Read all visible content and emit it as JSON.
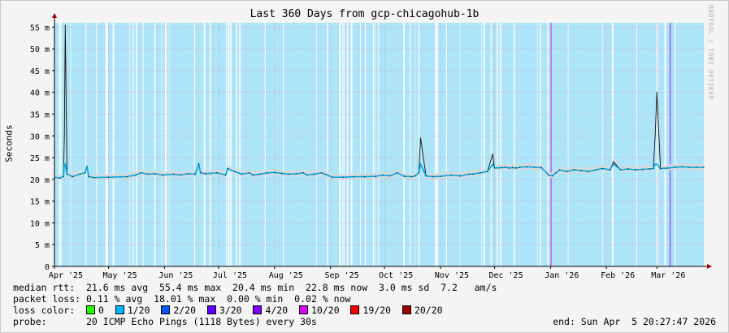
{
  "chart_data": {
    "type": "line",
    "title": "Last 360 Days from gcp-chicagohub-1b",
    "ylabel": "Seconds",
    "vendor": "RRDTOOL / TOBI OETIKER",
    "ylim": [
      0,
      0.056
    ],
    "y_ticks": [
      0,
      0.005,
      0.01,
      0.015,
      0.02,
      0.025,
      0.03,
      0.035,
      0.04,
      0.045,
      0.05,
      0.055
    ],
    "y_tick_labels": [
      "0",
      "5 m",
      "10 m",
      "15 m",
      "20 m",
      "25 m",
      "30 m",
      "35 m",
      "40 m",
      "45 m",
      "50 m",
      "55 m"
    ],
    "x_range_days": [
      0,
      360
    ],
    "x_ticks": [
      {
        "label": "Apr '25",
        "day": 0
      },
      {
        "label": "May '25",
        "day": 30
      },
      {
        "label": "Jun '25",
        "day": 61
      },
      {
        "label": "Jul '25",
        "day": 91
      },
      {
        "label": "Aug '25",
        "day": 122
      },
      {
        "label": "Sep '25",
        "day": 153
      },
      {
        "label": "Oct '25",
        "day": 183
      },
      {
        "label": "Nov '25",
        "day": 214
      },
      {
        "label": "Dec '25",
        "day": 244
      },
      {
        "label": "Jan '26",
        "day": 275
      },
      {
        "label": "Feb '26",
        "day": 306
      },
      {
        "label": "Mar '26",
        "day": 334
      }
    ],
    "series": [
      {
        "name": "median rtt",
        "x": [
          0,
          3,
          5,
          5.5,
          6,
          7,
          10,
          14,
          17,
          18,
          19,
          22,
          30,
          40,
          45,
          48,
          52,
          56,
          60,
          66,
          70,
          74,
          78,
          80,
          81,
          84,
          90,
          95,
          96,
          100,
          104,
          108,
          110,
          114,
          118,
          122,
          126,
          130,
          134,
          138,
          140,
          144,
          148,
          150,
          154,
          160,
          166,
          172,
          178,
          182,
          186,
          190,
          194,
          198,
          200,
          202,
          203,
          206,
          210,
          214,
          220,
          225,
          230,
          232,
          236,
          240,
          243,
          244,
          248,
          250,
          252,
          254,
          256,
          258,
          262,
          266,
          270,
          274,
          276,
          278,
          280,
          284,
          288,
          292,
          296,
          300,
          304,
          308,
          310,
          314,
          318,
          322,
          326,
          330,
          332,
          333,
          334,
          336,
          340,
          344,
          348,
          352,
          356,
          360
        ],
        "y": [
          0.0205,
          0.0203,
          0.0207,
          0.03,
          0.0554,
          0.0212,
          0.0206,
          0.0212,
          0.0215,
          0.023,
          0.0206,
          0.0204,
          0.0205,
          0.0206,
          0.021,
          0.0215,
          0.0212,
          0.0213,
          0.021,
          0.0212,
          0.021,
          0.0213,
          0.0212,
          0.0235,
          0.0215,
          0.0213,
          0.0215,
          0.021,
          0.0225,
          0.0218,
          0.0212,
          0.0215,
          0.021,
          0.0212,
          0.0215,
          0.0216,
          0.0214,
          0.0212,
          0.0213,
          0.0215,
          0.021,
          0.0212,
          0.0215,
          0.0212,
          0.0205,
          0.0205,
          0.0206,
          0.0206,
          0.0207,
          0.021,
          0.0208,
          0.0215,
          0.0207,
          0.0206,
          0.0208,
          0.0215,
          0.0295,
          0.0208,
          0.0206,
          0.0207,
          0.021,
          0.0208,
          0.0212,
          0.0212,
          0.0215,
          0.0218,
          0.0258,
          0.0226,
          0.0227,
          0.0228,
          0.0226,
          0.0227,
          0.0226,
          0.0228,
          0.0229,
          0.0228,
          0.0227,
          0.021,
          0.0208,
          0.0215,
          0.0222,
          0.0218,
          0.0222,
          0.022,
          0.0218,
          0.0222,
          0.0225,
          0.0222,
          0.024,
          0.0222,
          0.0224,
          0.0222,
          0.0223,
          0.0224,
          0.0225,
          0.03,
          0.04,
          0.0225,
          0.0226,
          0.0228,
          0.0229,
          0.0228,
          0.0228,
          0.0228
        ]
      }
    ],
    "loss_band_color": "#aee4f8",
    "median_line_color": "#00a8e0",
    "jitter_band_color": "#d8d8d8",
    "stats": {
      "median_rtt": "median rtt:  21.6 ms avg  55.4 ms max  20.4 ms min  22.8 ms now  3.0 ms sd  7.2   am/s",
      "packet_loss": "packet loss: 0.11 % avg  18.01 % max  0.00 % min  0.02 % now",
      "loss_color_label": "loss color:",
      "loss_colors": [
        {
          "label": "0",
          "color": "#26ff00"
        },
        {
          "label": "1/20",
          "color": "#00b8ff"
        },
        {
          "label": "2/20",
          "color": "#0059ff"
        },
        {
          "label": "3/20",
          "color": "#5e00ff"
        },
        {
          "label": "4/20",
          "color": "#7e00ff"
        },
        {
          "label": "10/20",
          "color": "#dd00ff"
        },
        {
          "label": "19/20",
          "color": "#ff0000"
        },
        {
          "label": "20/20",
          "color": "#a00000"
        }
      ],
      "probe": "probe:       20 ICMP Echo Pings (1118 Bytes) every 30s",
      "end": "end: Sun Apr  5 20:27:47 2026"
    }
  }
}
